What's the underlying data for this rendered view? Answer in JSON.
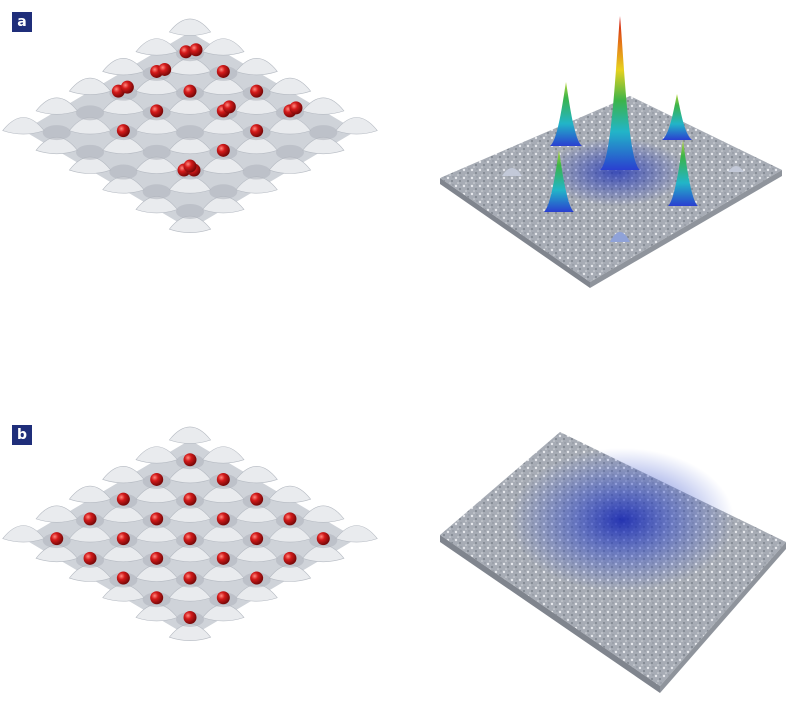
{
  "panels": {
    "a": {
      "label": "a"
    },
    "b": {
      "label": "b"
    }
  },
  "colors": {
    "label_bg": "#1f2e7a",
    "lattice_surface": "#d9dde2",
    "atom": "#c8141b",
    "noise_surface": "#a9aeb6",
    "density_blue": "#1a2fb8",
    "peak_red": "#d21a14",
    "peak_green": "#3aa84a"
  },
  "icons": {
    "lattice": "optical-lattice-surface",
    "atom": "red-atom-sphere",
    "peaks": "interference-peaks-3d",
    "cloud": "diffuse-density-cloud"
  }
}
